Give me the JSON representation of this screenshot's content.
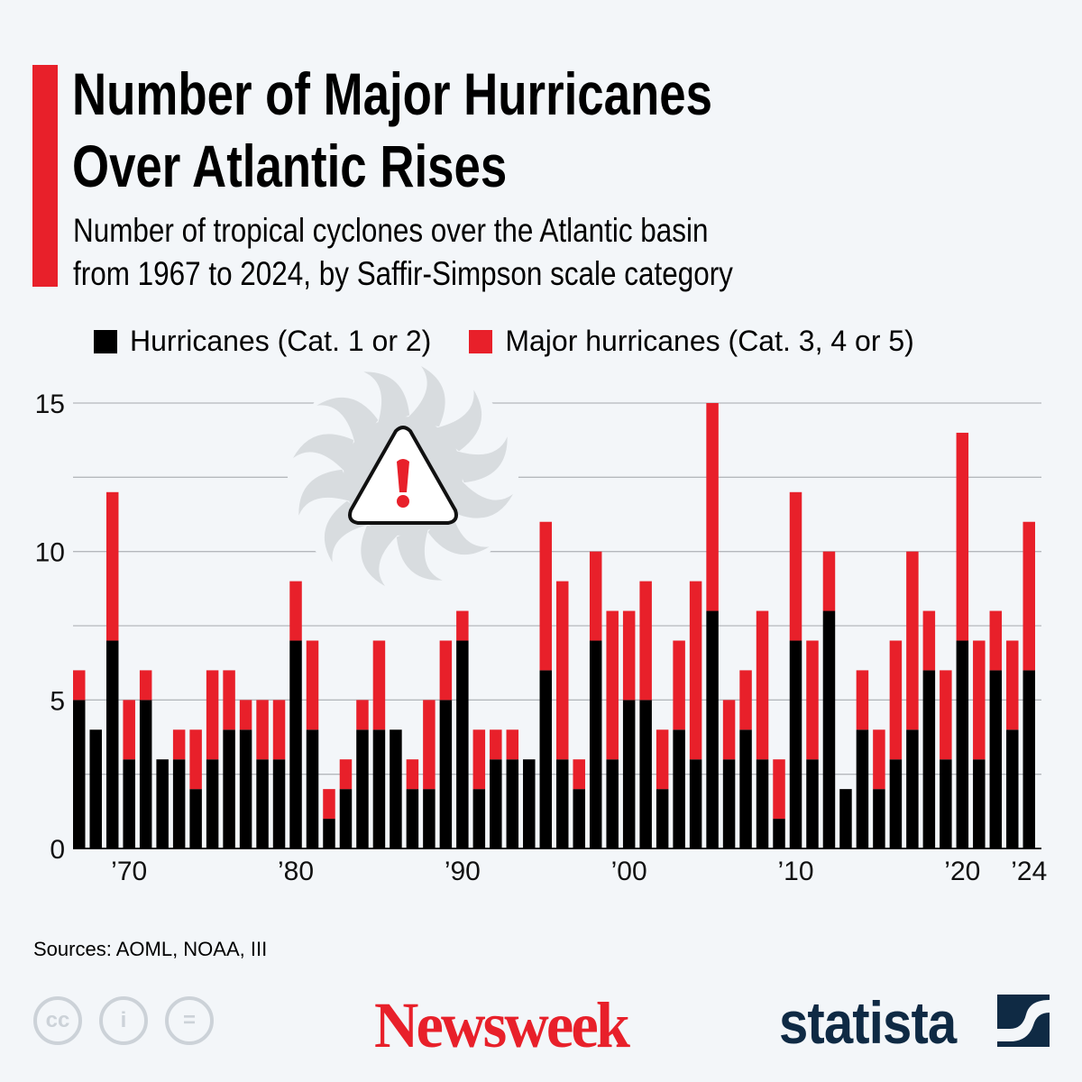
{
  "title_lines": [
    "Number of Major Hurricanes",
    "Over Atlantic Rises"
  ],
  "subtitle_lines": [
    "Number of tropical cyclones over the Atlantic basin",
    "from 1967 to 2024, by Saffir-Simpson scale category"
  ],
  "colors": {
    "accent": "#e8202a",
    "hurricanes": "#000000",
    "major": "#e8202a",
    "background": "#f3f6f9",
    "grid": "#b4b8bd"
  },
  "icon": "hurricane-warning-icon",
  "chart_data": {
    "type": "bar",
    "stacked": true,
    "title": "",
    "xlabel": "",
    "ylabel": "",
    "ylim": [
      0,
      15
    ],
    "yticks": [
      0,
      5,
      10,
      15
    ],
    "grid": true,
    "gridlines": [
      0,
      2.5,
      5,
      7.5,
      10,
      12.5,
      15
    ],
    "legend_position": "top",
    "categories": [
      1967,
      1968,
      1969,
      1970,
      1971,
      1972,
      1973,
      1974,
      1975,
      1976,
      1977,
      1978,
      1979,
      1980,
      1981,
      1982,
      1983,
      1984,
      1985,
      1986,
      1987,
      1988,
      1989,
      1990,
      1991,
      1992,
      1993,
      1994,
      1995,
      1996,
      1997,
      1998,
      1999,
      2000,
      2001,
      2002,
      2003,
      2004,
      2005,
      2006,
      2007,
      2008,
      2009,
      2010,
      2011,
      2012,
      2013,
      2014,
      2015,
      2016,
      2017,
      2018,
      2019,
      2020,
      2021,
      2022,
      2023,
      2024
    ],
    "xtick_labels": [
      {
        "year": 1970,
        "label": "’70"
      },
      {
        "year": 1980,
        "label": "’80"
      },
      {
        "year": 1990,
        "label": "’90"
      },
      {
        "year": 2000,
        "label": "’00"
      },
      {
        "year": 2010,
        "label": "’10"
      },
      {
        "year": 2020,
        "label": "’20"
      },
      {
        "year": 2024,
        "label": "’24"
      }
    ],
    "series": [
      {
        "name": "Hurricanes (Cat. 1 or 2)",
        "color": "#000000",
        "values": [
          5,
          4,
          7,
          3,
          5,
          3,
          3,
          2,
          3,
          4,
          4,
          3,
          3,
          7,
          4,
          1,
          2,
          4,
          4,
          4,
          2,
          2,
          5,
          7,
          2,
          3,
          3,
          3,
          6,
          3,
          2,
          7,
          3,
          5,
          5,
          2,
          4,
          3,
          8,
          3,
          4,
          3,
          1,
          7,
          3,
          8,
          2,
          4,
          2,
          3,
          4,
          6,
          3,
          7,
          3,
          6,
          4,
          6
        ]
      },
      {
        "name": "Major hurricanes (Cat. 3, 4 or 5)",
        "color": "#e8202a",
        "values": [
          1,
          0,
          5,
          2,
          1,
          0,
          1,
          2,
          3,
          2,
          1,
          2,
          2,
          2,
          3,
          1,
          1,
          1,
          3,
          0,
          1,
          3,
          2,
          1,
          2,
          1,
          1,
          0,
          5,
          6,
          1,
          3,
          5,
          3,
          4,
          2,
          3,
          6,
          7,
          2,
          2,
          5,
          2,
          5,
          4,
          2,
          0,
          2,
          2,
          4,
          6,
          2,
          3,
          7,
          4,
          2,
          3,
          5
        ]
      }
    ]
  },
  "footer": {
    "source": "Sources: AOML, NOAA, III",
    "license_icons": [
      "creative-commons-icon",
      "attribution-icon",
      "no-derivatives-icon"
    ],
    "brand_newsweek": "Newsweek",
    "brand_statista": "statista"
  }
}
